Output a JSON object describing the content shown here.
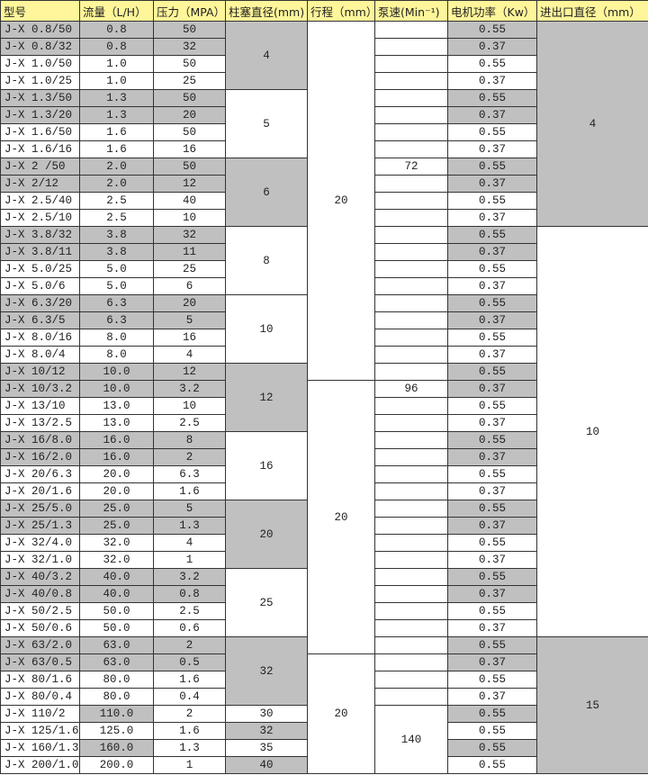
{
  "colors": {
    "header": "#FFF59A",
    "shade": "#C0C0C0",
    "border": "#333333"
  },
  "headers": [
    "型号",
    "流量（L/H）",
    "压力（MPA）",
    "柱塞直径(mm)",
    "行程（mm）",
    "泵速(Min⁻¹)",
    "电机功率（Kw）",
    "进出口直径（mm）"
  ],
  "rows": [
    {
      "model": "J-X 0.8/50",
      "flow": "0.8",
      "pressure": "50",
      "power": "0.55",
      "shaded": [
        "model",
        "flow",
        "pressure",
        "power"
      ]
    },
    {
      "model": "J-X 0.8/32",
      "flow": "0.8",
      "pressure": "32",
      "power": "0.37",
      "shaded": [
        "model",
        "flow",
        "pressure",
        "power"
      ]
    },
    {
      "model": "J-X 1.0/50",
      "flow": "1.0",
      "pressure": "50",
      "power": "0.55",
      "shaded": []
    },
    {
      "model": "J-X 1.0/25",
      "flow": "1.0",
      "pressure": "25",
      "power": "0.37",
      "shaded": []
    },
    {
      "model": "J-X 1.3/50",
      "flow": "1.3",
      "pressure": "50",
      "power": "0.55",
      "shaded": [
        "model",
        "flow",
        "pressure",
        "power"
      ]
    },
    {
      "model": "J-X 1.3/20",
      "flow": "1.3",
      "pressure": "20",
      "power": "0.37",
      "shaded": [
        "model",
        "flow",
        "pressure",
        "power"
      ]
    },
    {
      "model": "J-X 1.6/50",
      "flow": "1.6",
      "pressure": "50",
      "power": "0.55",
      "shaded": []
    },
    {
      "model": "J-X 1.6/16",
      "flow": "1.6",
      "pressure": "16",
      "power": "0.37",
      "shaded": []
    },
    {
      "model": "J-X 2 /50",
      "flow": "2.0",
      "pressure": "50",
      "power": "0.55",
      "shaded": [
        "model",
        "flow",
        "pressure",
        "power"
      ]
    },
    {
      "model": "J-X 2/12",
      "flow": "2.0",
      "pressure": "12",
      "power": "0.37",
      "shaded": [
        "model",
        "flow",
        "pressure",
        "power"
      ]
    },
    {
      "model": "J-X 2.5/40",
      "flow": "2.5",
      "pressure": "40",
      "power": "0.55",
      "shaded": []
    },
    {
      "model": "J-X 2.5/10",
      "flow": "2.5",
      "pressure": "10",
      "power": "0.37",
      "shaded": []
    },
    {
      "model": "J-X 3.8/32",
      "flow": "3.8",
      "pressure": "32",
      "power": "0.55",
      "shaded": [
        "model",
        "flow",
        "pressure",
        "power"
      ]
    },
    {
      "model": "J-X 3.8/11",
      "flow": "3.8",
      "pressure": "11",
      "power": "0.37",
      "shaded": [
        "model",
        "flow",
        "pressure",
        "power"
      ]
    },
    {
      "model": "J-X 5.0/25",
      "flow": "5.0",
      "pressure": "25",
      "power": "0.55",
      "shaded": []
    },
    {
      "model": "J-X 5.0/6",
      "flow": "5.0",
      "pressure": "6",
      "power": "0.37",
      "shaded": []
    },
    {
      "model": "J-X 6.3/20",
      "flow": "6.3",
      "pressure": "20",
      "power": "0.55",
      "shaded": [
        "model",
        "flow",
        "pressure",
        "power"
      ]
    },
    {
      "model": "J-X 6.3/5",
      "flow": "6.3",
      "pressure": "5",
      "power": "0.37",
      "shaded": [
        "model",
        "flow",
        "pressure",
        "power"
      ]
    },
    {
      "model": "J-X 8.0/16",
      "flow": "8.0",
      "pressure": "16",
      "power": "0.55",
      "shaded": []
    },
    {
      "model": "J-X 8.0/4",
      "flow": "8.0",
      "pressure": "4",
      "power": "0.37",
      "shaded": []
    },
    {
      "model": "J-X 10/12",
      "flow": "10.0",
      "pressure": "12",
      "power": "0.55",
      "shaded": [
        "model",
        "flow",
        "pressure",
        "power"
      ]
    },
    {
      "model": "J-X 10/3.2",
      "flow": "10.0",
      "pressure": "3.2",
      "power": "0.37",
      "shaded": [
        "model",
        "flow",
        "pressure",
        "power"
      ]
    },
    {
      "model": "J-X 13/10",
      "flow": "13.0",
      "pressure": "10",
      "power": "0.55",
      "shaded": []
    },
    {
      "model": "J-X 13/2.5",
      "flow": "13.0",
      "pressure": "2.5",
      "power": "0.37",
      "shaded": []
    },
    {
      "model": "J-X 16/8.0",
      "flow": "16.0",
      "pressure": "8",
      "power": "0.55",
      "shaded": [
        "model",
        "flow",
        "pressure",
        "power"
      ]
    },
    {
      "model": "J-X 16/2.0",
      "flow": "16.0",
      "pressure": "2",
      "power": "0.37",
      "shaded": [
        "model",
        "flow",
        "pressure",
        "power"
      ]
    },
    {
      "model": "J-X 20/6.3",
      "flow": "20.0",
      "pressure": "6.3",
      "power": "0.55",
      "shaded": []
    },
    {
      "model": "J-X 20/1.6",
      "flow": "20.0",
      "pressure": "1.6",
      "power": "0.37",
      "shaded": []
    },
    {
      "model": "J-X 25/5.0",
      "flow": "25.0",
      "pressure": "5",
      "power": "0.55",
      "shaded": [
        "model",
        "flow",
        "pressure",
        "power"
      ]
    },
    {
      "model": "J-X 25/1.3",
      "flow": "25.0",
      "pressure": "1.3",
      "power": "0.37",
      "shaded": [
        "model",
        "flow",
        "pressure",
        "power"
      ]
    },
    {
      "model": "J-X 32/4.0",
      "flow": "32.0",
      "pressure": "4",
      "power": "0.55",
      "shaded": []
    },
    {
      "model": "J-X 32/1.0",
      "flow": "32.0",
      "pressure": "1",
      "power": "0.37",
      "shaded": []
    },
    {
      "model": "J-X 40/3.2",
      "flow": "40.0",
      "pressure": "3.2",
      "power": "0.55",
      "shaded": [
        "model",
        "flow",
        "pressure",
        "power"
      ]
    },
    {
      "model": "J-X 40/0.8",
      "flow": "40.0",
      "pressure": "0.8",
      "power": "0.37",
      "shaded": [
        "model",
        "flow",
        "pressure",
        "power"
      ]
    },
    {
      "model": "J-X 50/2.5",
      "flow": "50.0",
      "pressure": "2.5",
      "power": "0.55",
      "shaded": []
    },
    {
      "model": "J-X 50/0.6",
      "flow": "50.0",
      "pressure": "0.6",
      "power": "0.37",
      "shaded": []
    },
    {
      "model": "J-X 63/2.0",
      "flow": "63.0",
      "pressure": "2",
      "power": "0.55",
      "shaded": [
        "model",
        "flow",
        "pressure",
        "power"
      ]
    },
    {
      "model": "J-X 63/0.5",
      "flow": "63.0",
      "pressure": "0.5",
      "power": "0.37",
      "shaded": [
        "model",
        "flow",
        "pressure",
        "power"
      ]
    },
    {
      "model": "J-X 80/1.6",
      "flow": "80.0",
      "pressure": "1.6",
      "power": "0.55",
      "shaded": []
    },
    {
      "model": "J-X 80/0.4",
      "flow": "80.0",
      "pressure": "0.4",
      "power": "0.37",
      "shaded": []
    },
    {
      "model": "J-X 110/2",
      "flow": "110.0",
      "pressure": "2",
      "power": "0.55",
      "shaded": [
        "flow",
        "power"
      ]
    },
    {
      "model": "J-X 125/1.6",
      "flow": "125.0",
      "pressure": "1.6",
      "power": "0.55",
      "shaded": []
    },
    {
      "model": "J-X 160/1.3",
      "flow": "160.0",
      "pressure": "1.3",
      "power": "0.55",
      "shaded": [
        "flow",
        "power"
      ]
    },
    {
      "model": "J-X 200/1.0",
      "flow": "200.0",
      "pressure": "1",
      "power": "0.55",
      "shaded": []
    }
  ],
  "plunger_groups": [
    {
      "value": "4",
      "rows": 4,
      "shaded": true
    },
    {
      "value": "5",
      "rows": 4,
      "shaded": false
    },
    {
      "value": "6",
      "rows": 4,
      "shaded": true
    },
    {
      "value": "8",
      "rows": 4,
      "shaded": false
    },
    {
      "value": "10",
      "rows": 4,
      "shaded": false
    },
    {
      "value": "12",
      "rows": 4,
      "shaded": true
    },
    {
      "value": "16",
      "rows": 4,
      "shaded": false
    },
    {
      "value": "20",
      "rows": 4,
      "shaded": true
    },
    {
      "value": "25",
      "rows": 4,
      "shaded": false
    },
    {
      "value": "32",
      "rows": 4,
      "shaded": true
    },
    {
      "value": "30",
      "rows": 1,
      "shaded": false
    },
    {
      "value": "32",
      "rows": 1,
      "shaded": true
    },
    {
      "value": "35",
      "rows": 1,
      "shaded": false
    },
    {
      "value": "40",
      "rows": 1,
      "shaded": true
    }
  ],
  "stroke_groups": [
    {
      "value": "20",
      "rows": 21
    },
    {
      "value": "20",
      "rows": 16
    },
    {
      "value": "20",
      "rows": 7
    }
  ],
  "speed_groups": [
    {
      "value": "",
      "rows": 1
    },
    {
      "value": "",
      "rows": 1
    },
    {
      "value": "",
      "rows": 1
    },
    {
      "value": "",
      "rows": 1
    },
    {
      "value": "",
      "rows": 1
    },
    {
      "value": "",
      "rows": 1
    },
    {
      "value": "",
      "rows": 1
    },
    {
      "value": "",
      "rows": 1
    },
    {
      "value": "72",
      "rows": 1
    },
    {
      "value": "",
      "rows": 1
    },
    {
      "value": "",
      "rows": 1
    },
    {
      "value": "",
      "rows": 1
    },
    {
      "value": "",
      "rows": 1
    },
    {
      "value": "",
      "rows": 1
    },
    {
      "value": "",
      "rows": 1
    },
    {
      "value": "",
      "rows": 1
    },
    {
      "value": "",
      "rows": 1
    },
    {
      "value": "",
      "rows": 1
    },
    {
      "value": "",
      "rows": 1
    },
    {
      "value": "",
      "rows": 1
    },
    {
      "value": "",
      "rows": 1
    },
    {
      "value": "96",
      "rows": 1
    },
    {
      "value": "",
      "rows": 1
    },
    {
      "value": "",
      "rows": 1
    },
    {
      "value": "",
      "rows": 1
    },
    {
      "value": "",
      "rows": 1
    },
    {
      "value": "",
      "rows": 1
    },
    {
      "value": "",
      "rows": 1
    },
    {
      "value": "",
      "rows": 1
    },
    {
      "value": "",
      "rows": 1
    },
    {
      "value": "",
      "rows": 1
    },
    {
      "value": "",
      "rows": 1
    },
    {
      "value": "",
      "rows": 1
    },
    {
      "value": "",
      "rows": 1
    },
    {
      "value": "",
      "rows": 1
    },
    {
      "value": "",
      "rows": 1
    },
    {
      "value": "",
      "rows": 1
    },
    {
      "value": "",
      "rows": 1
    },
    {
      "value": "",
      "rows": 1
    },
    {
      "value": "",
      "rows": 1
    },
    {
      "value": "140",
      "rows": 4
    }
  ],
  "inlet_groups": [
    {
      "value": "4",
      "rows": 12,
      "shaded": true
    },
    {
      "value": "10",
      "rows": 24,
      "shaded": false
    },
    {
      "value": "15",
      "rows": 8,
      "shaded": true
    }
  ]
}
